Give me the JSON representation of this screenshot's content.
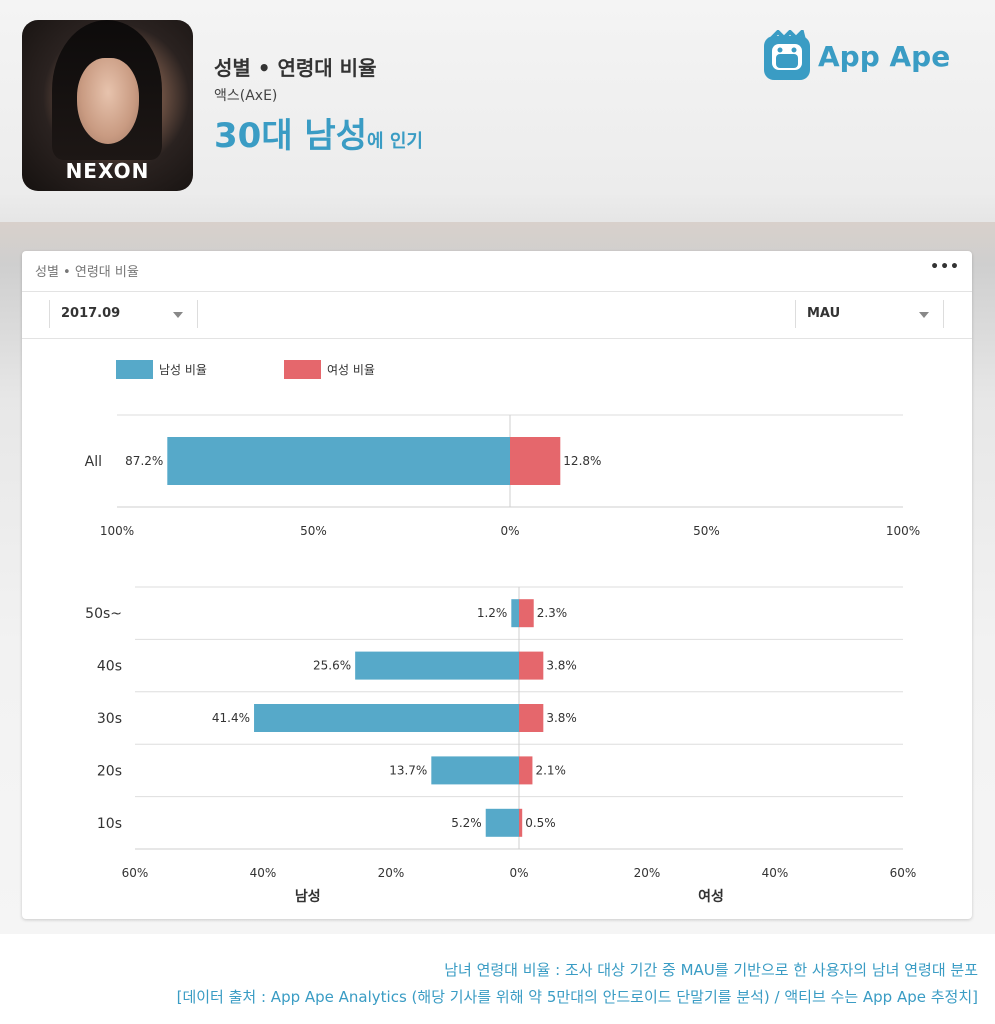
{
  "header": {
    "title": "성별 • 연령대 비율",
    "app_name": "액스(AxE)",
    "headline_bold": "30대 남성",
    "headline_suffix": "에 인기",
    "app_icon_label": "NEXON",
    "logo_text": "App Ape"
  },
  "card": {
    "title": "성별 • 연령대 비율",
    "more_icon": "more-dots",
    "period_select": "2017.09",
    "metric_select": "MAU"
  },
  "legend": {
    "male": "남성 비율",
    "female": "여성 비율"
  },
  "colors": {
    "male": "#56a9c9",
    "female": "#e5676c",
    "accent": "#3a9cc4"
  },
  "chart_data": [
    {
      "type": "bar",
      "orientation": "horizontal-diverging",
      "categories": [
        "All"
      ],
      "series": [
        {
          "name": "남성 비율",
          "values": [
            87.2
          ],
          "labels": [
            "87.2%"
          ]
        },
        {
          "name": "여성 비율",
          "values": [
            12.8
          ],
          "labels": [
            "12.8%"
          ]
        }
      ],
      "xlim": [
        -100,
        100
      ],
      "ticks": [
        "100%",
        "50%",
        "0%",
        "50%",
        "100%"
      ],
      "grid": true
    },
    {
      "type": "bar",
      "orientation": "horizontal-diverging",
      "categories": [
        "50s~",
        "40s",
        "30s",
        "20s",
        "10s"
      ],
      "series": [
        {
          "name": "남성 비율",
          "values": [
            1.2,
            25.6,
            41.4,
            13.7,
            5.2
          ],
          "labels": [
            "1.2%",
            "25.6%",
            "41.4%",
            "13.7%",
            "5.2%"
          ]
        },
        {
          "name": "여성 비율",
          "values": [
            2.3,
            3.8,
            3.8,
            2.1,
            0.5
          ],
          "labels": [
            "2.3%",
            "3.8%",
            "3.8%",
            "2.1%",
            "0.5%"
          ]
        }
      ],
      "xlim": [
        -60,
        60
      ],
      "ticks": [
        "60%",
        "40%",
        "20%",
        "0%",
        "20%",
        "40%",
        "60%"
      ],
      "xlabel_left": "남성",
      "xlabel_right": "여성",
      "grid": true
    }
  ],
  "footer": {
    "line1": "남녀 연령대 비율 : 조사 대상 기간 중 MAU를 기반으로 한 사용자의 남녀 연령대 분포",
    "line2": "[데이터 출처 : App Ape Analytics (해당 기사를 위해 약 5만대의 안드로이드 단말기를 분석) / 액티브 수는 App Ape 추정치]"
  }
}
